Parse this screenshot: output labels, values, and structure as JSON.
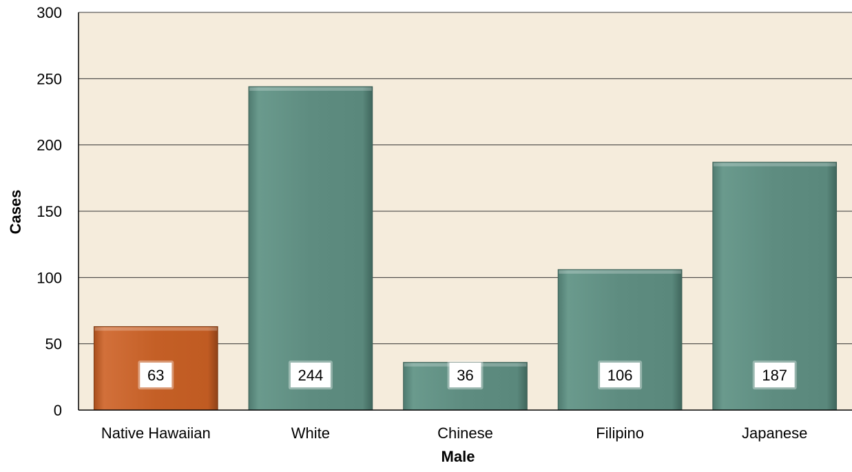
{
  "chart_data": {
    "type": "bar",
    "title": "",
    "xlabel": "Male",
    "ylabel": "Cases",
    "categories": [
      "Native Hawaiian",
      "White",
      "Chinese",
      "Filipino",
      "Japanese"
    ],
    "values": [
      63,
      244,
      36,
      106,
      187
    ],
    "data_labels": [
      "63",
      "244",
      "36",
      "106",
      "187"
    ],
    "ylim": [
      0,
      300
    ],
    "yticks": [
      0,
      50,
      100,
      150,
      200,
      250,
      300
    ],
    "ytick_labels": [
      "0",
      "50",
      "100",
      "150",
      "200",
      "250",
      "300"
    ],
    "grid": true,
    "legend": "none",
    "colors": {
      "plot_background": "#f5ecdc",
      "highlight_bar": "#c45f26",
      "default_bar": "#5e8c80",
      "gridline": "#333333",
      "label_box": "#ffffff"
    },
    "bar_colors": [
      "#c45f26",
      "#5e8c80",
      "#5e8c80",
      "#5e8c80",
      "#5e8c80"
    ]
  }
}
